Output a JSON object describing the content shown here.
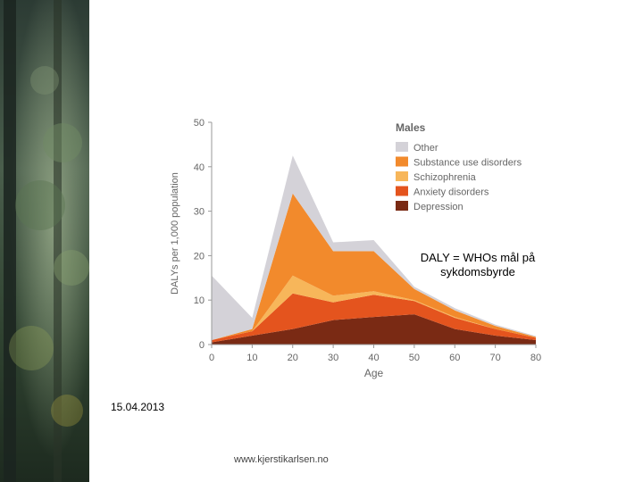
{
  "slide": {
    "annotation_line1": "DALY = WHOs mål på",
    "annotation_line2": "sykdomsbyrde",
    "date": "15.04.2013",
    "footer": "www.kjerstikarlsen.no"
  },
  "chart_data": {
    "type": "area",
    "stacked": true,
    "legend_title": "Males",
    "ylabel": "DALYs per 1,000 population",
    "xlabel": "Age",
    "x": [
      0,
      10,
      20,
      30,
      40,
      50,
      60,
      70,
      80
    ],
    "ylim": [
      0,
      50
    ],
    "yticks": [
      0,
      10,
      20,
      30,
      40,
      50
    ],
    "xticks": [
      0,
      10,
      20,
      30,
      40,
      50,
      60,
      70,
      80
    ],
    "grid": false,
    "legend_position": "top-right",
    "series": [
      {
        "name": "Depression",
        "color": "#7a2a14",
        "values": [
          0.5,
          2,
          3.5,
          5.5,
          6.2,
          6.8,
          3.5,
          2,
          1
        ]
      },
      {
        "name": "Anxiety disorders",
        "color": "#e4541e",
        "values": [
          0.5,
          1,
          8,
          4,
          5,
          3,
          2.5,
          1.5,
          0.5
        ]
      },
      {
        "name": "Schizophrenia",
        "color": "#f7b65a",
        "values": [
          0,
          0,
          4,
          1.5,
          0.8,
          0.2,
          0.2,
          0,
          0
        ]
      },
      {
        "name": "Substance use disorders",
        "color": "#f28a2c",
        "values": [
          0,
          0.5,
          18.5,
          10,
          9,
          2.5,
          1.5,
          0.7,
          0.2
        ]
      },
      {
        "name": "Other",
        "color": "#d4d2d8",
        "values": [
          14.5,
          2.5,
          8.5,
          2,
          2.5,
          0.5,
          0.5,
          0.3,
          0.2
        ]
      }
    ],
    "legend_order": [
      "Other",
      "Substance use disorders",
      "Schizophrenia",
      "Anxiety disorders",
      "Depression"
    ]
  }
}
